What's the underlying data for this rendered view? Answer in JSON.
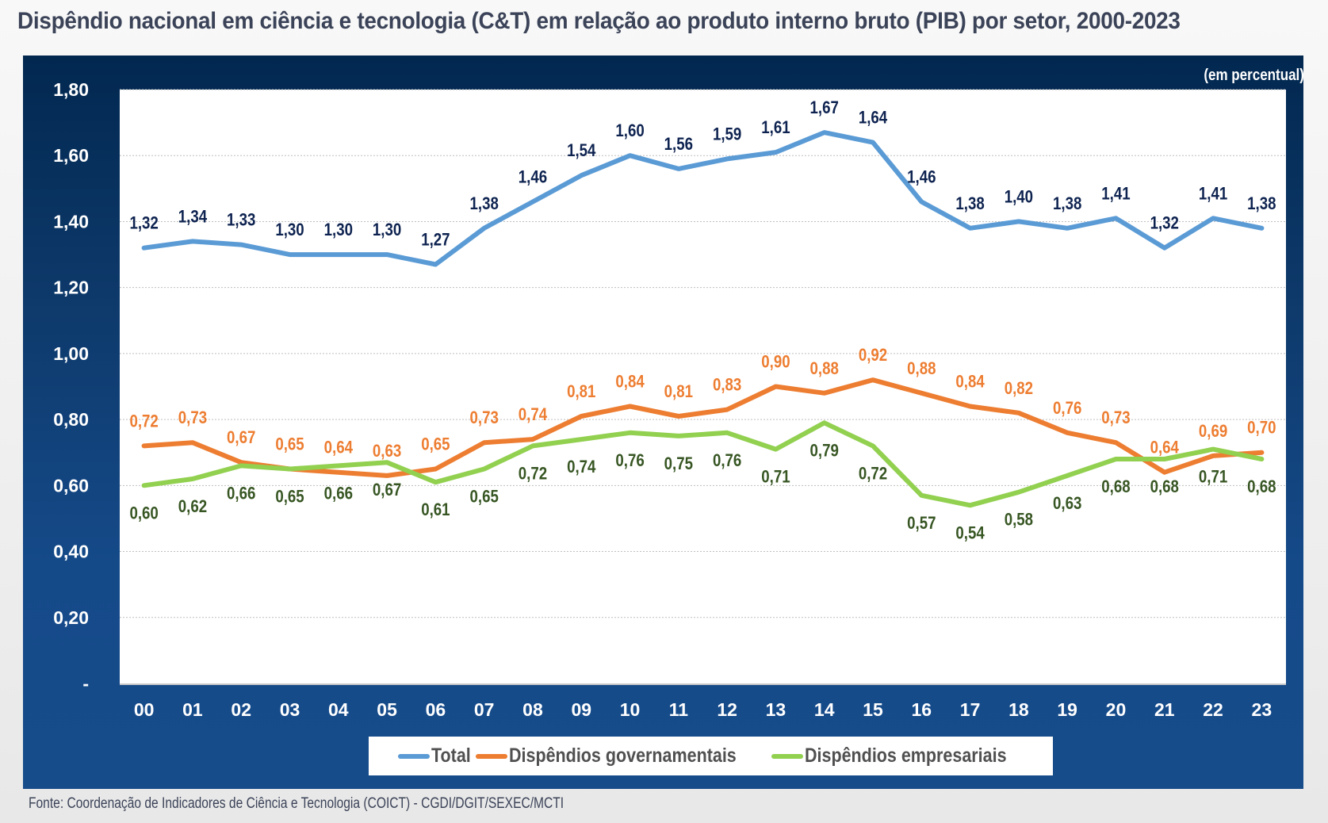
{
  "title": "Dispêndio nacional em ciência e tecnologia (C&T) em relação ao produto interno bruto (PIB) por setor, 2000-2023",
  "unit_label": "(em percentual)",
  "source": "Fonte: Coordenação de Indicadores de Ciência e Tecnologia (COICT) - CGDI/DGIT/SEXEC/MCTI",
  "colors": {
    "total": "#5b9bd5",
    "gov": "#ed7d31",
    "emp": "#92d050",
    "total_label": "#0e2350",
    "gov_label": "#ed7d31",
    "emp_label": "#375623"
  },
  "chart_data": {
    "type": "line",
    "title": "Dispêndio nacional em ciência e tecnologia (C&T) em relação ao produto interno bruto (PIB) por setor, 2000-2023",
    "xlabel": "",
    "ylabel": "(em percentual)",
    "categories": [
      "00",
      "01",
      "02",
      "03",
      "04",
      "05",
      "06",
      "07",
      "08",
      "09",
      "10",
      "11",
      "12",
      "13",
      "14",
      "15",
      "16",
      "17",
      "18",
      "19",
      "20",
      "21",
      "22",
      "23"
    ],
    "ylim": [
      0,
      1.8
    ],
    "yticks": [
      0,
      0.2,
      0.4,
      0.6,
      0.8,
      1.0,
      1.2,
      1.4,
      1.6,
      1.8
    ],
    "ytick_labels": [
      "-",
      "0,20",
      "0,40",
      "0,60",
      "0,80",
      "1,00",
      "1,20",
      "1,40",
      "1,60",
      "1,80"
    ],
    "grid": true,
    "legend_position": "bottom",
    "series": [
      {
        "key": "total",
        "name": "Total",
        "values": [
          1.32,
          1.34,
          1.33,
          1.3,
          1.3,
          1.3,
          1.27,
          1.38,
          1.46,
          1.54,
          1.6,
          1.56,
          1.59,
          1.61,
          1.67,
          1.64,
          1.46,
          1.38,
          1.4,
          1.38,
          1.41,
          1.32,
          1.41,
          1.38
        ],
        "labels": [
          "1,32",
          "1,34",
          "1,33",
          "1,30",
          "1,30",
          "1,30",
          "1,27",
          "1,38",
          "1,46",
          "1,54",
          "1,60",
          "1,56",
          "1,59",
          "1,61",
          "1,67",
          "1,64",
          "1,46",
          "1,38",
          "1,40",
          "1,38",
          "1,41",
          "1,32",
          "1,41",
          "1,38"
        ],
        "label_position": "above"
      },
      {
        "key": "gov",
        "name": "Dispêndios governamentais",
        "values": [
          0.72,
          0.73,
          0.67,
          0.65,
          0.64,
          0.63,
          0.65,
          0.73,
          0.74,
          0.81,
          0.84,
          0.81,
          0.83,
          0.9,
          0.88,
          0.92,
          0.88,
          0.84,
          0.82,
          0.76,
          0.73,
          0.64,
          0.69,
          0.7
        ],
        "labels": [
          "0,72",
          "0,73",
          "0,67",
          "0,65",
          "0,64",
          "0,63",
          "0,65",
          "0,73",
          "0,74",
          "0,81",
          "0,84",
          "0,81",
          "0,83",
          "0,90",
          "0,88",
          "0,92",
          "0,88",
          "0,84",
          "0,82",
          "0,76",
          "0,73",
          "0,64",
          "0,69",
          "0,70"
        ],
        "label_position": "above"
      },
      {
        "key": "emp",
        "name": "Dispêndios empresariais",
        "values": [
          0.6,
          0.62,
          0.66,
          0.65,
          0.66,
          0.67,
          0.61,
          0.65,
          0.72,
          0.74,
          0.76,
          0.75,
          0.76,
          0.71,
          0.79,
          0.72,
          0.57,
          0.54,
          0.58,
          0.63,
          0.68,
          0.68,
          0.71,
          0.68
        ],
        "labels": [
          "0,60",
          "0,62",
          "0,66",
          "0,65",
          "0,66",
          "0,67",
          "0,61",
          "0,65",
          "0,72",
          "0,74",
          "0,76",
          "0,75",
          "0,76",
          "0,71",
          "0,79",
          "0,72",
          "0,57",
          "0,54",
          "0,58",
          "0,63",
          "0,68",
          "0,68",
          "0,71",
          "0,68"
        ],
        "label_position": "below"
      }
    ]
  },
  "legend": [
    {
      "key": "total",
      "label": "Total"
    },
    {
      "key": "gov",
      "label": "Dispêndios governamentais"
    },
    {
      "key": "emp",
      "label": "Dispêndios empresariais"
    }
  ]
}
